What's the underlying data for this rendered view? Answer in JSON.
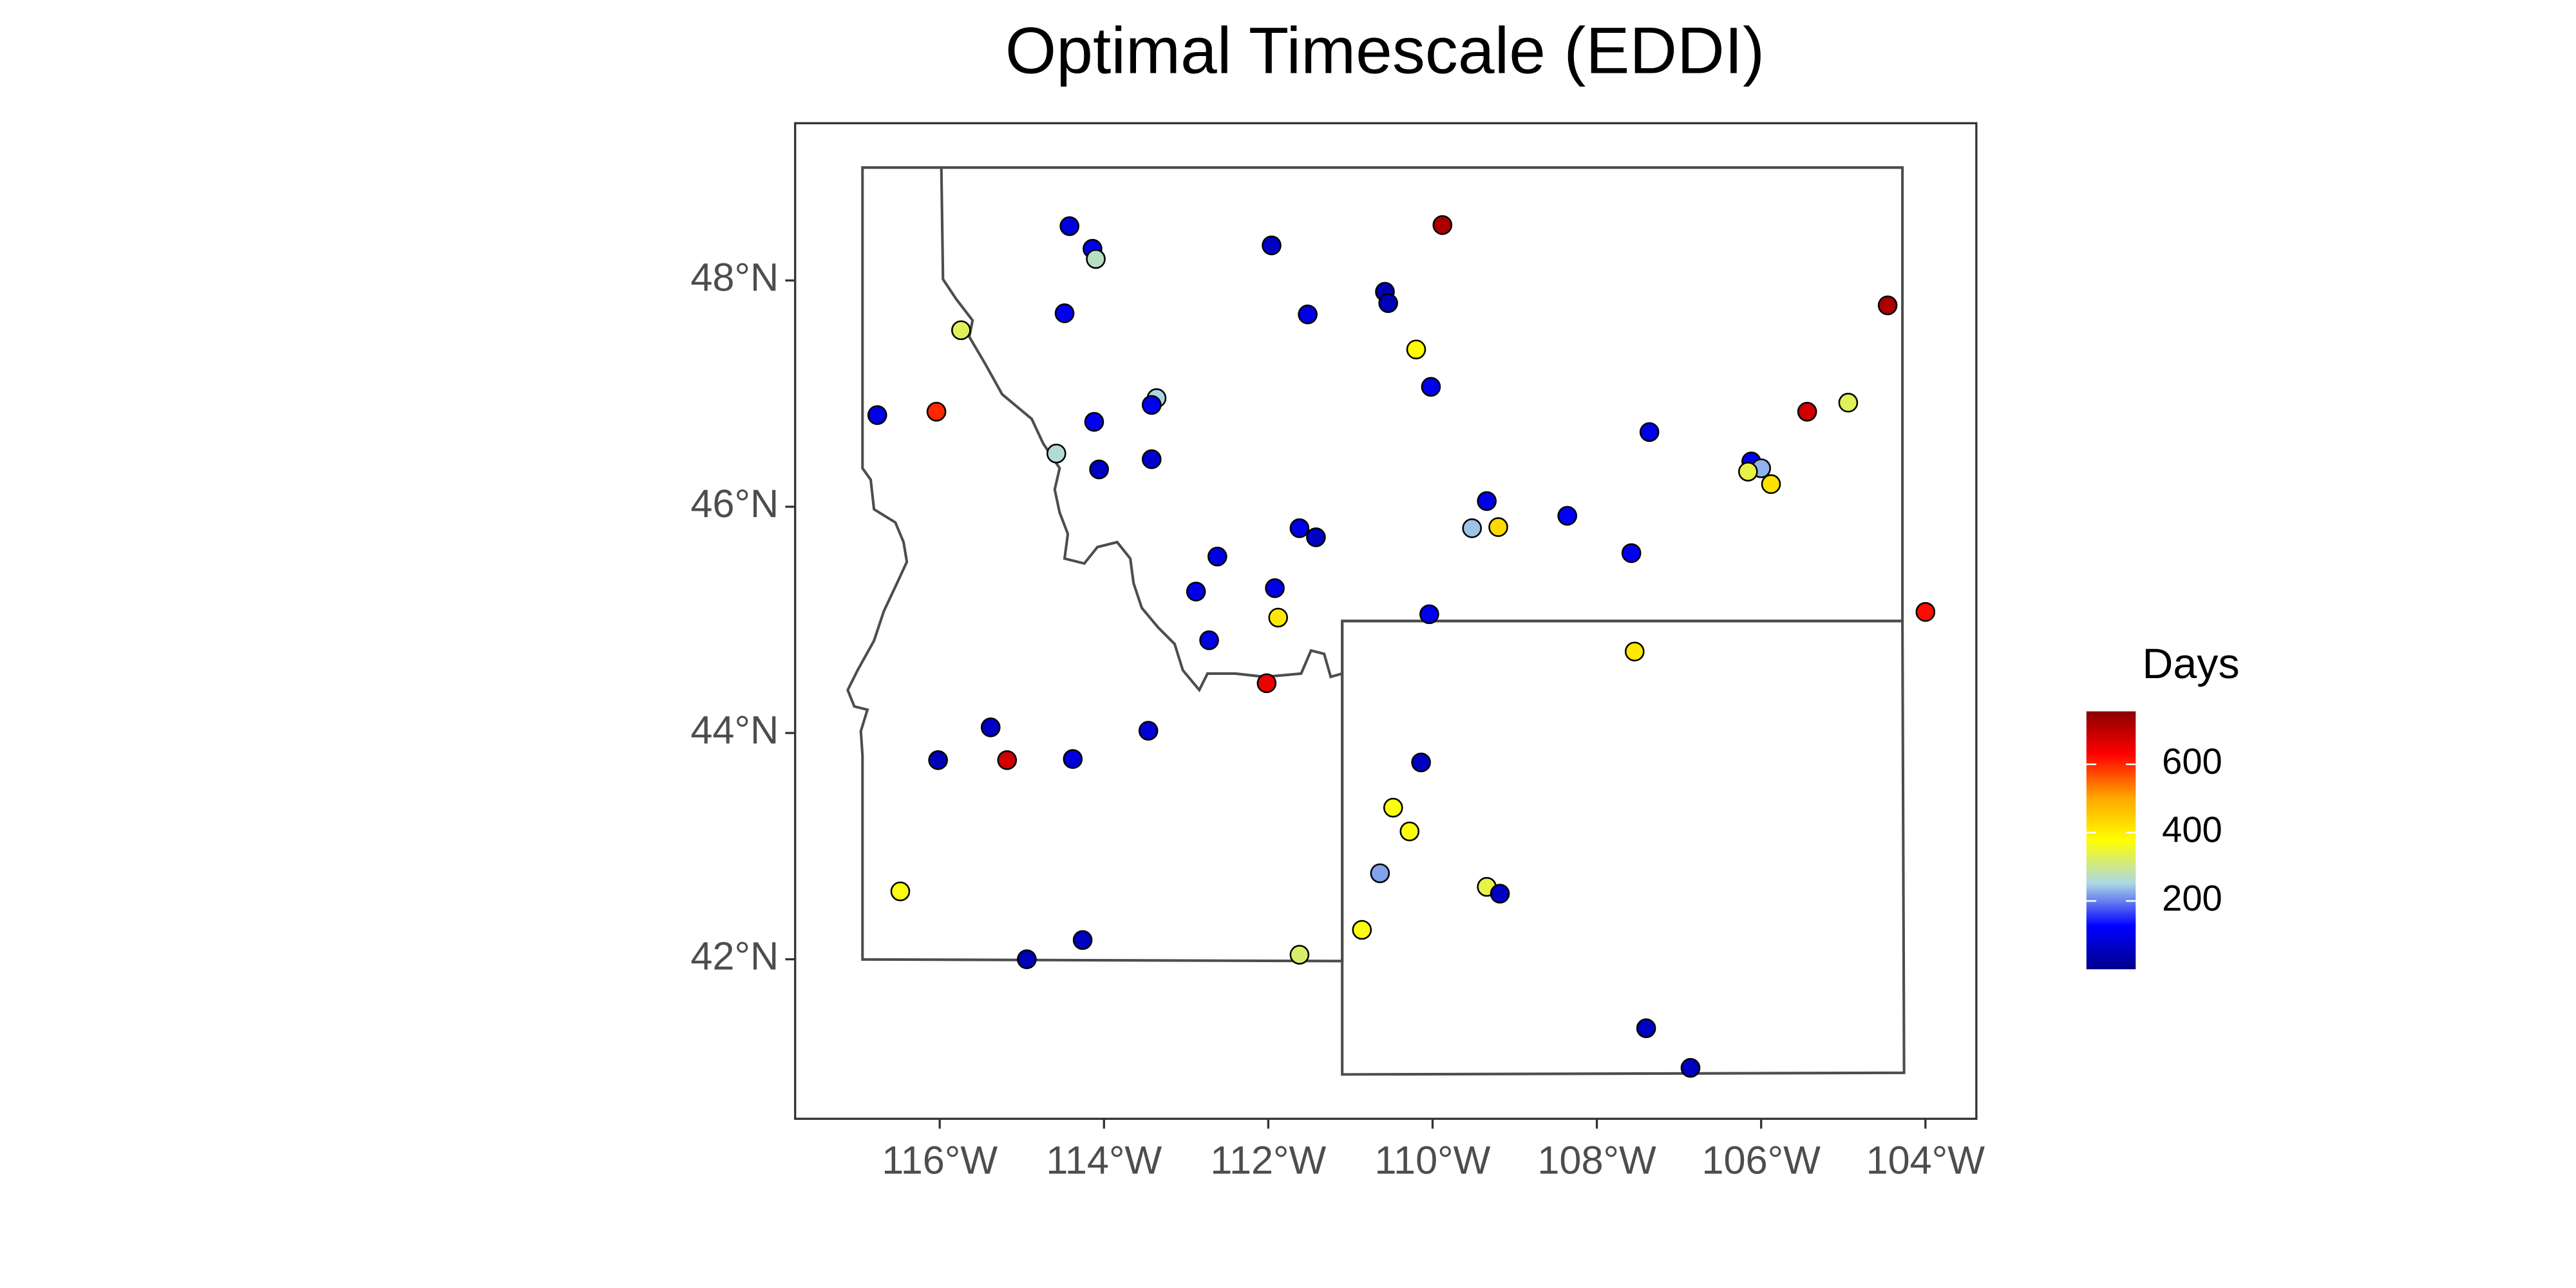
{
  "chart_data": {
    "type": "scatter",
    "title": "Optimal Timescale (EDDI)",
    "x": [
      -116.76,
      -116.04,
      -115.74,
      -114.42,
      -114.14,
      -114.1,
      -114.48,
      -114.12,
      -114.58,
      -114.06,
      -113.36,
      -113.42,
      -113.42,
      -111.96,
      -111.52,
      -109.88,
      -110.58,
      -110.54,
      -110.2,
      -110.02,
      -104.46,
      -104.94,
      -105.44,
      -107.36,
      -106.12,
      -106.0,
      -106.16,
      -105.88,
      -109.34,
      -109.52,
      -109.2,
      -108.36,
      -107.58,
      -111.62,
      -111.42,
      -112.62,
      -112.88,
      -111.92,
      -111.88,
      -112.72,
      -110.04,
      -104.0,
      -107.54,
      -112.02,
      -115.38,
      -116.02,
      -115.18,
      -114.38,
      -113.46,
      -110.14,
      -110.48,
      -110.28,
      -110.64,
      -109.34,
      -109.18,
      -116.48,
      -114.94,
      -114.26,
      -111.62,
      -110.86,
      -107.4,
      -106.86
    ],
    "y": [
      46.81,
      46.84,
      47.56,
      48.48,
      48.28,
      48.19,
      47.71,
      46.75,
      46.47,
      46.33,
      46.96,
      46.9,
      46.42,
      48.31,
      47.7,
      48.49,
      47.9,
      47.8,
      47.39,
      47.06,
      47.78,
      46.92,
      46.84,
      46.66,
      46.4,
      46.34,
      46.31,
      46.2,
      46.05,
      45.81,
      45.82,
      45.92,
      45.59,
      45.81,
      45.73,
      45.56,
      45.25,
      45.28,
      45.02,
      44.82,
      45.05,
      45.07,
      44.72,
      44.44,
      44.05,
      43.76,
      43.76,
      43.77,
      44.02,
      43.74,
      43.34,
      43.13,
      42.76,
      42.64,
      42.58,
      42.6,
      42.0,
      42.17,
      42.04,
      42.26,
      41.39,
      41.04
    ],
    "values": [
      100,
      600,
      330,
      90,
      110,
      270,
      110,
      110,
      260,
      60,
      250,
      110,
      70,
      60,
      100,
      720,
      40,
      50,
      380,
      110,
      720,
      330,
      680,
      100,
      110,
      230,
      340,
      420,
      100,
      240,
      430,
      120,
      110,
      100,
      60,
      100,
      100,
      100,
      410,
      100,
      110,
      620,
      410,
      650,
      60,
      50,
      680,
      90,
      80,
      60,
      370,
      370,
      220,
      340,
      60,
      370,
      50,
      60,
      320,
      370,
      60,
      60
    ],
    "xlim": [
      -117.76,
      -103.38
    ],
    "ylim": [
      40.59,
      49.39
    ],
    "xticks": [
      {
        "value": -116,
        "label": "116°W"
      },
      {
        "value": -114,
        "label": "114°W"
      },
      {
        "value": -112,
        "label": "112°W"
      },
      {
        "value": -110,
        "label": "110°W"
      },
      {
        "value": -108,
        "label": "108°W"
      },
      {
        "value": -106,
        "label": "106°W"
      },
      {
        "value": -104,
        "label": "104°W"
      }
    ],
    "yticks": [
      {
        "value": 42,
        "label": "42°N"
      },
      {
        "value": 44,
        "label": "44°N"
      },
      {
        "value": 46,
        "label": "46°N"
      },
      {
        "value": 48,
        "label": "48°N"
      }
    ],
    "colorbar": {
      "title": "Days",
      "lim": [
        0,
        755
      ],
      "ticks": [
        200,
        400,
        600
      ],
      "colors": [
        "#00008b",
        "#0000ff",
        "#add8e6",
        "#ffff00",
        "#ffa500",
        "#ff0000",
        "#8b0000"
      ]
    }
  }
}
